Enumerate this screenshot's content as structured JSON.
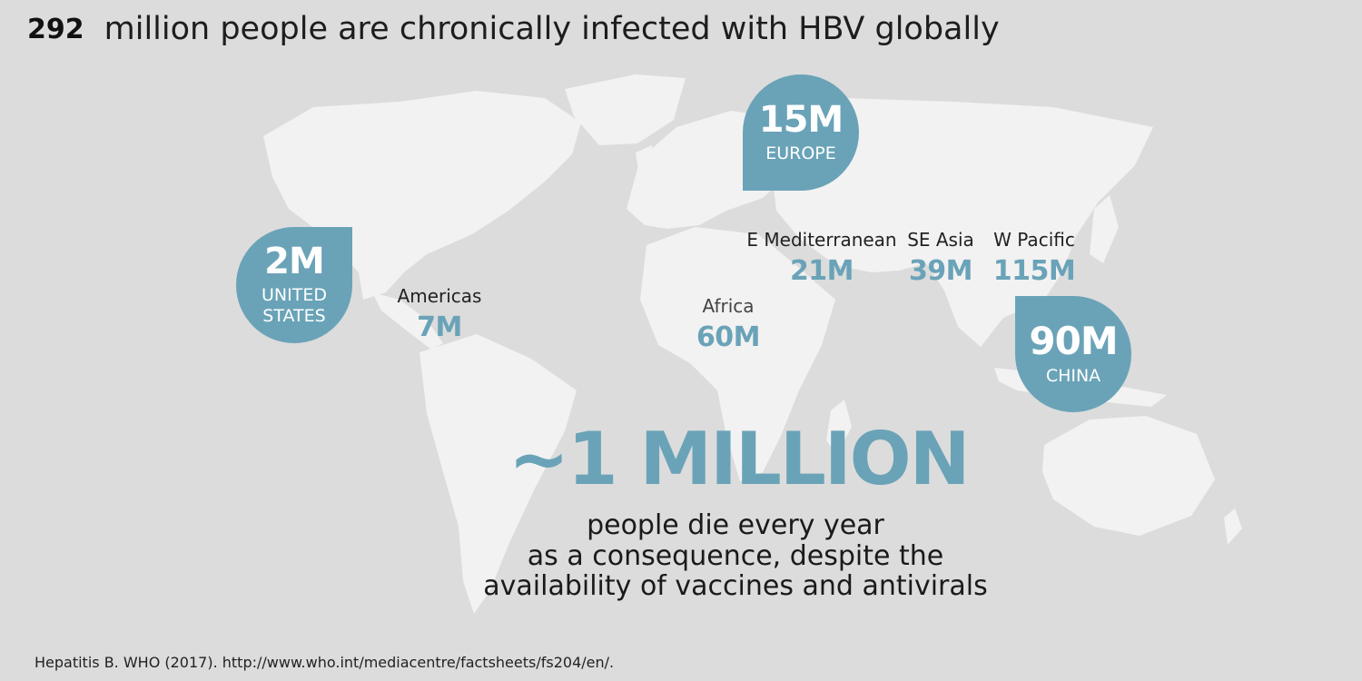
{
  "title": {
    "number": "292",
    "text": "million people are chronically infected with HBV globally"
  },
  "pins": {
    "us": {
      "value": "2M",
      "label_line1": "UNITED",
      "label_line2": "STATES"
    },
    "europe": {
      "value": "15M",
      "label": "EUROPE"
    },
    "china": {
      "value": "90M",
      "label": "CHINA"
    }
  },
  "regions": {
    "americas": {
      "name": "Americas",
      "value": "7M"
    },
    "africa": {
      "name": "Africa",
      "value": "60M"
    },
    "e_mediterranean": {
      "name": "E Mediterranean",
      "value": "21M"
    },
    "se_asia": {
      "name": "SE Asia",
      "value": "39M"
    },
    "w_pacific": {
      "name": "W Pacific",
      "value": "115M"
    }
  },
  "headline": "~1 MILLION",
  "subtext": {
    "line1": "people die every year",
    "line2": "as a consequence, despite the",
    "line3": "availability of vaccines and antivirals"
  },
  "footnote": "Hepatitis B. WHO (2017). http://www.who.int/mediacentre/factsheets/fs204/en/.",
  "colors": {
    "background": "#dcdcdc",
    "land": "#f2f2f2",
    "accent": "#6aa3b8"
  }
}
